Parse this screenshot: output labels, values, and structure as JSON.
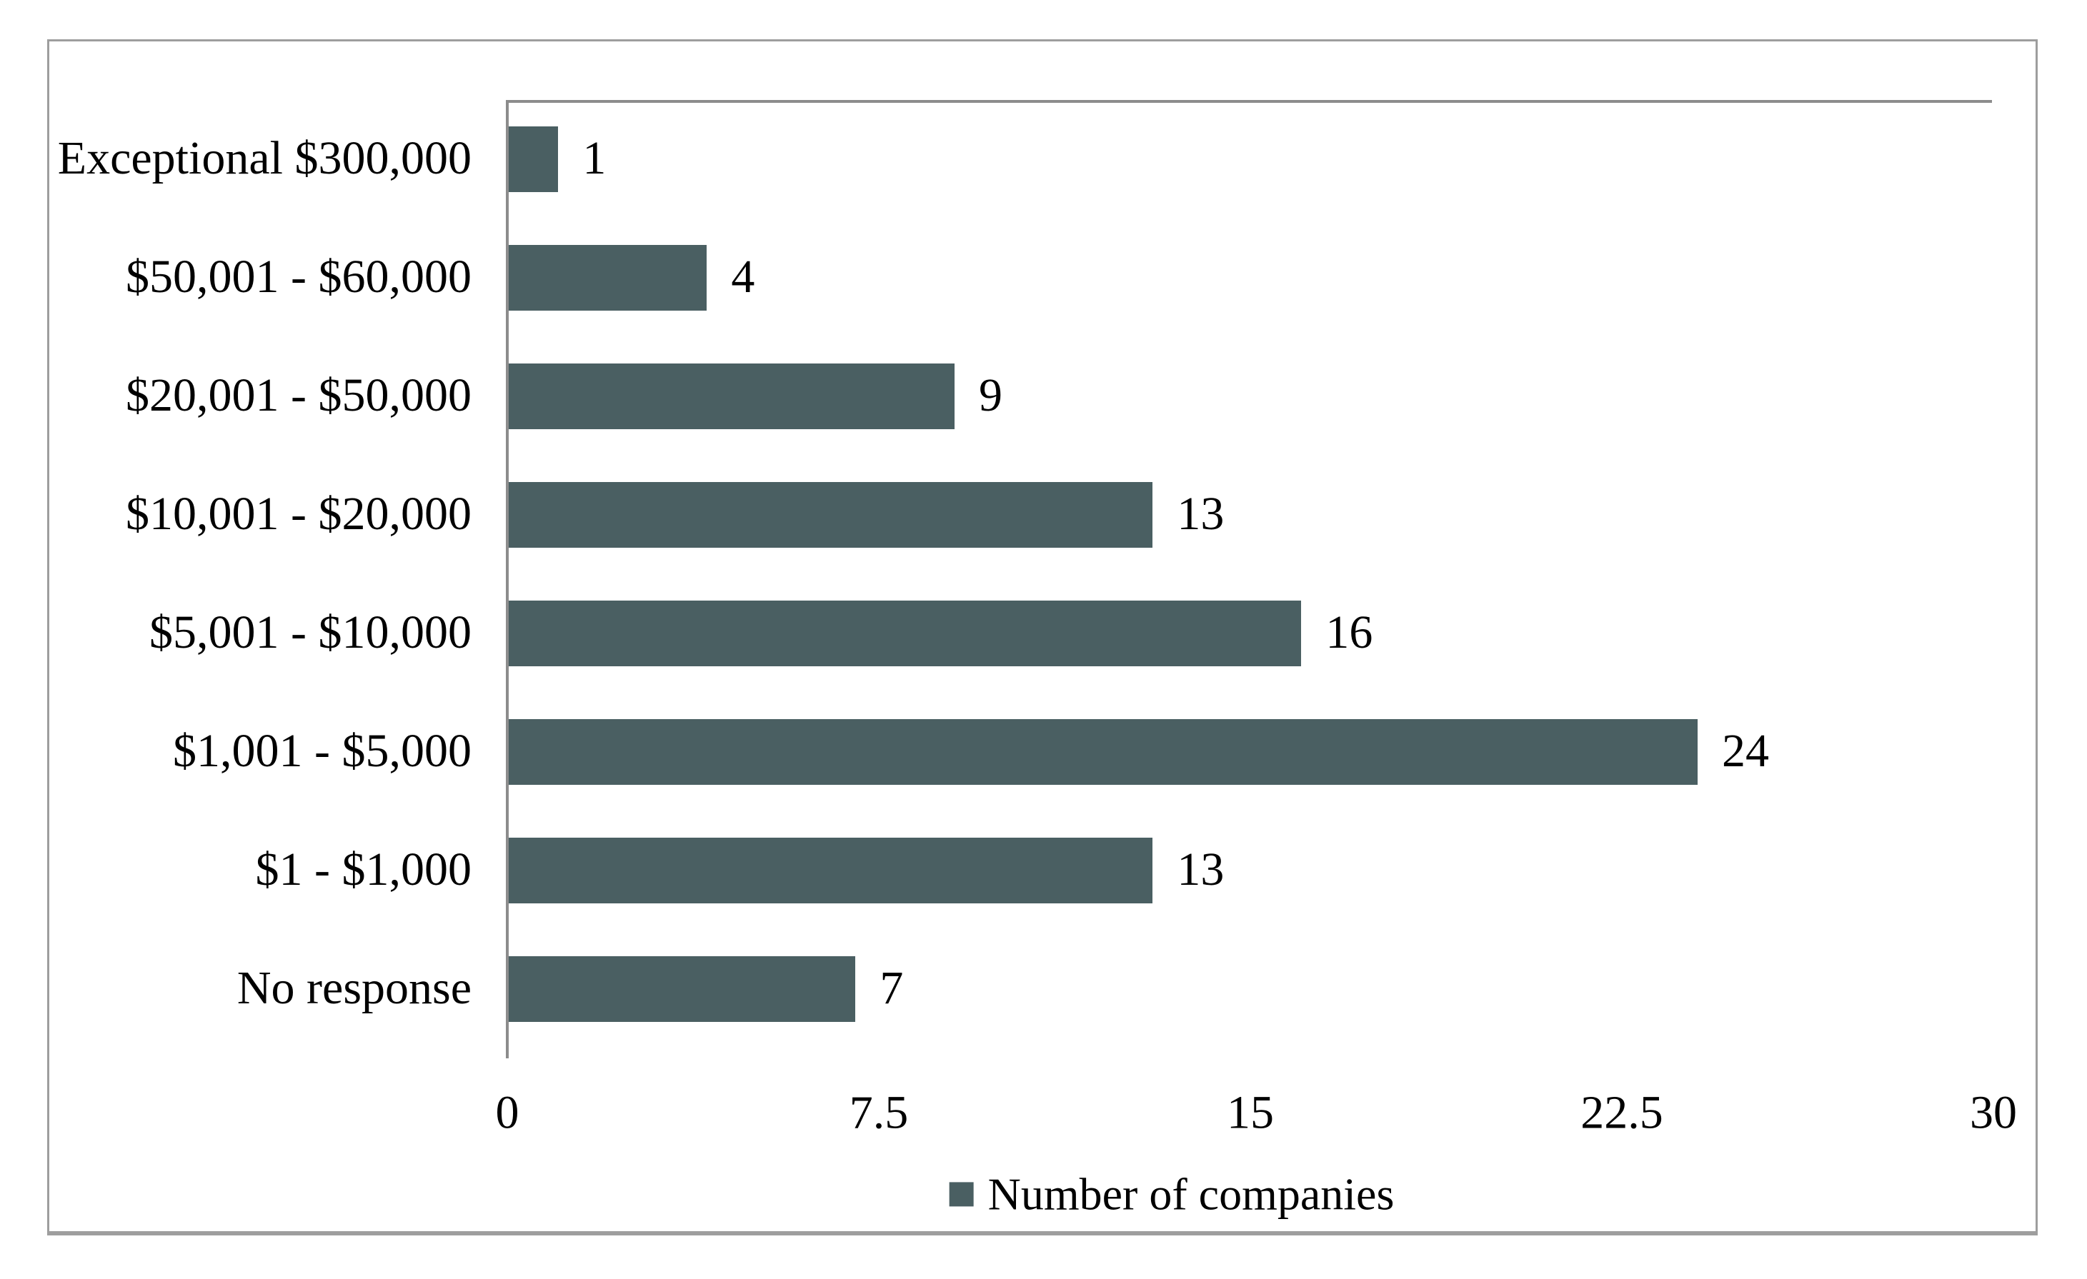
{
  "chart_data": {
    "type": "bar",
    "orientation": "horizontal",
    "title": "",
    "xlabel": "",
    "ylabel": "",
    "categories": [
      "Exceptional $300,000",
      "$50,001 - $60,000",
      "$20,001 - $50,000",
      "$10,001 - $20,000",
      "$5,001 - $10,000",
      "$1,001 - $5,000",
      "$1 - $1,000",
      "No response"
    ],
    "series": [
      {
        "name": "Number of companies",
        "values": [
          1,
          4,
          9,
          13,
          16,
          24,
          13,
          7
        ]
      }
    ],
    "data_labels": [
      "1",
      "4",
      "9",
      "13",
      "16",
      "24",
      "13",
      "7"
    ],
    "xlim": [
      0,
      30
    ],
    "x_ticks": [
      "0",
      "7.5",
      "15",
      "22.5",
      "30"
    ],
    "x_tick_values": [
      0,
      7.5,
      15,
      22.5,
      30
    ],
    "grid": false,
    "legend_position": "bottom",
    "colors": {
      "bar": "#4a5f62",
      "axis_line": "#8c8c8c",
      "frame_border": "#9e9e9e",
      "text": "#000000",
      "background": "#ffffff"
    }
  },
  "legend": {
    "label": "Number of companies"
  }
}
